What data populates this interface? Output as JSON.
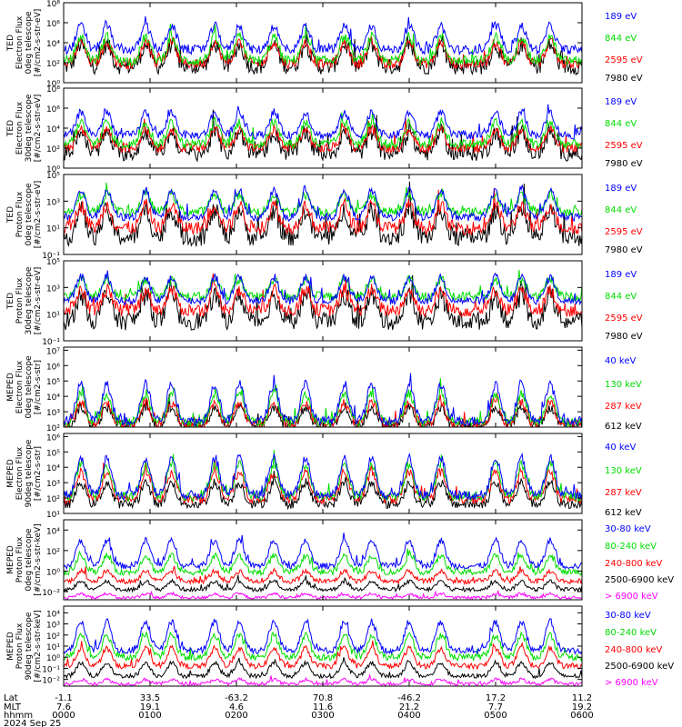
{
  "chart_data": [
    {
      "type": "line",
      "ylabel": [
        "TED",
        "Electron Flux",
        "0deg telescope",
        "[#/cm2-s-str-eV]"
      ],
      "yticks": [
        {
          "exp": 0,
          "label": "10⁰"
        },
        {
          "exp": 2,
          "label": "10²"
        },
        {
          "exp": 4,
          "label": "10⁴"
        },
        {
          "exp": 6,
          "label": "10⁶"
        },
        {
          "exp": 8,
          "label": "10⁸"
        }
      ],
      "ylim": [
        0,
        8
      ],
      "series": [
        {
          "name": "7980 eV",
          "color": "#000000",
          "base": 1.6,
          "peak": 3.8,
          "noise": 0.8
        },
        {
          "name": "2595 eV",
          "color": "#ff0000",
          "base": 1.9,
          "peak": 4.1,
          "noise": 0.5
        },
        {
          "name": "844 eV",
          "color": "#00dd00",
          "base": 2.2,
          "peak": 4.6,
          "noise": 0.5
        },
        {
          "name": "189 eV",
          "color": "#0000ff",
          "base": 3.3,
          "peak": 5.7,
          "noise": 0.45
        }
      ]
    },
    {
      "type": "line",
      "ylabel": [
        "TED",
        "Electron Flux",
        "30deg telescope",
        "[#/cm2-s-str-eV]"
      ],
      "yticks": [
        {
          "exp": 0,
          "label": "10⁰"
        },
        {
          "exp": 2,
          "label": "10²"
        },
        {
          "exp": 4,
          "label": "10⁴"
        },
        {
          "exp": 6,
          "label": "10⁶"
        },
        {
          "exp": 8,
          "label": "10⁸"
        }
      ],
      "ylim": [
        0,
        8
      ],
      "series": [
        {
          "name": "7980 eV",
          "color": "#000000",
          "base": 1.5,
          "peak": 3.6,
          "noise": 0.8
        },
        {
          "name": "2595 eV",
          "color": "#ff0000",
          "base": 2.0,
          "peak": 3.9,
          "noise": 0.5
        },
        {
          "name": "844 eV",
          "color": "#00dd00",
          "base": 2.4,
          "peak": 4.6,
          "noise": 0.5
        },
        {
          "name": "189 eV",
          "color": "#0000ff",
          "base": 3.3,
          "peak": 5.6,
          "noise": 0.4
        }
      ]
    },
    {
      "type": "line",
      "ylabel": [
        "TED",
        "Proton Flux",
        "0deg telescope",
        "[#/cm2-s-str-eV]"
      ],
      "yticks": [
        {
          "exp": -1,
          "label": "10⁻¹"
        },
        {
          "exp": 1,
          "label": "10¹"
        },
        {
          "exp": 3,
          "label": "10³"
        },
        {
          "exp": 5,
          "label": "10⁵"
        }
      ],
      "ylim": [
        -1,
        5
      ],
      "series": [
        {
          "name": "7980 eV",
          "color": "#000000",
          "base": 0.3,
          "peak": 2.3,
          "noise": 0.7
        },
        {
          "name": "2595 eV",
          "color": "#ff0000",
          "base": 1.0,
          "peak": 2.7,
          "noise": 0.5
        },
        {
          "name": "844 eV",
          "color": "#00dd00",
          "base": 2.2,
          "peak": 3.5,
          "noise": 0.35
        },
        {
          "name": "189 eV",
          "color": "#0000ff",
          "base": 1.8,
          "peak": 3.8,
          "noise": 0.3
        }
      ]
    },
    {
      "type": "line",
      "ylabel": [
        "TED",
        "Proton Flux",
        "30deg telescope",
        "[#/cm2-s-str-eV]"
      ],
      "yticks": [
        {
          "exp": -1,
          "label": "10⁻¹"
        },
        {
          "exp": 1,
          "label": "10¹"
        },
        {
          "exp": 3,
          "label": "10³"
        },
        {
          "exp": 5,
          "label": "10⁵"
        }
      ],
      "ylim": [
        -1,
        5
      ],
      "series": [
        {
          "name": "7980 eV",
          "color": "#000000",
          "base": 0.5,
          "peak": 2.4,
          "noise": 0.7
        },
        {
          "name": "2595 eV",
          "color": "#ff0000",
          "base": 1.3,
          "peak": 2.8,
          "noise": 0.5
        },
        {
          "name": "844 eV",
          "color": "#00dd00",
          "base": 2.3,
          "peak": 3.6,
          "noise": 0.35
        },
        {
          "name": "189 eV",
          "color": "#0000ff",
          "base": 2.0,
          "peak": 3.8,
          "noise": 0.3
        }
      ]
    },
    {
      "type": "line",
      "ylabel": [
        "MEPED",
        "Electron Flux",
        "0deg telescope",
        "[#/cm2-s-str]"
      ],
      "yticks": [
        {
          "exp": 2,
          "label": "10²"
        },
        {
          "exp": 3,
          "label": "10³"
        },
        {
          "exp": 4,
          "label": "10⁴"
        },
        {
          "exp": 5,
          "label": "10⁵"
        },
        {
          "exp": 6,
          "label": "10⁶"
        },
        {
          "exp": 7,
          "label": "10⁷"
        }
      ],
      "ylim": [
        2,
        7.2
      ],
      "series": [
        {
          "name": "612 keV",
          "color": "#000000",
          "base": 2.1,
          "peak": 3.3,
          "noise": 0.3
        },
        {
          "name": "287 keV",
          "color": "#ff0000",
          "base": 2.2,
          "peak": 3.6,
          "noise": 0.3
        },
        {
          "name": "130 keV",
          "color": "#00dd00",
          "base": 2.3,
          "peak": 4.2,
          "noise": 0.3
        },
        {
          "name": "40 keV",
          "color": "#0000ff",
          "base": 2.4,
          "peak": 4.8,
          "noise": 0.3
        }
      ]
    },
    {
      "type": "line",
      "ylabel": [
        "MEPED",
        "Electron Flux",
        "90deg telescope",
        "[#/cm2-s-str]"
      ],
      "yticks": [
        {
          "exp": 1,
          "label": "10¹"
        },
        {
          "exp": 2,
          "label": "10²"
        },
        {
          "exp": 3,
          "label": "10³"
        },
        {
          "exp": 4,
          "label": "10⁴"
        },
        {
          "exp": 5,
          "label": "10⁵"
        },
        {
          "exp": 6,
          "label": "10⁶"
        }
      ],
      "ylim": [
        1,
        6.2
      ],
      "series": [
        {
          "name": "612 keV",
          "color": "#000000",
          "base": 1.6,
          "peak": 3.0,
          "noise": 0.3
        },
        {
          "name": "287 keV",
          "color": "#ff0000",
          "base": 1.9,
          "peak": 3.7,
          "noise": 0.3
        },
        {
          "name": "130 keV",
          "color": "#00dd00",
          "base": 2.1,
          "peak": 4.2,
          "noise": 0.3
        },
        {
          "name": "40 keV",
          "color": "#0000ff",
          "base": 2.2,
          "peak": 4.6,
          "noise": 0.3
        }
      ]
    },
    {
      "type": "line",
      "ylabel": [
        "MEPED",
        "Proton Flux",
        "0deg telescope",
        "[#/cm2-s-str-keV]"
      ],
      "yticks": [
        {
          "exp": -2,
          "label": "10⁻²"
        },
        {
          "exp": 0,
          "label": "10⁰"
        },
        {
          "exp": 2,
          "label": "10²"
        },
        {
          "exp": 4,
          "label": "10⁴"
        }
      ],
      "ylim": [
        -2.8,
        5
      ],
      "series": [
        {
          "name": "> 6900 keV",
          "color": "#ff00ff",
          "base": -2.6,
          "peak": -2.2,
          "noise": 0.15
        },
        {
          "name": "2500-6900 keV",
          "color": "#000000",
          "base": -1.8,
          "peak": -1.0,
          "noise": 0.2
        },
        {
          "name": "240-800 keV",
          "color": "#ff0000",
          "base": -1.0,
          "peak": 0.0,
          "noise": 0.25
        },
        {
          "name": "80-240 keV",
          "color": "#00dd00",
          "base": -0.1,
          "peak": 1.5,
          "noise": 0.3
        },
        {
          "name": "30-80 keV",
          "color": "#0000ff",
          "base": 0.5,
          "peak": 3.0,
          "noise": 0.3
        }
      ]
    },
    {
      "type": "line",
      "ylabel": [
        "MEPED",
        "Proton Flux",
        "90deg telescope",
        "[#/cm2-s-str-keV]"
      ],
      "yticks": [
        {
          "exp": -2,
          "label": "10⁻²"
        },
        {
          "exp": -1,
          "label": "10⁻¹"
        },
        {
          "exp": 0,
          "label": "10⁰"
        },
        {
          "exp": 1,
          "label": "10¹"
        },
        {
          "exp": 2,
          "label": "10²"
        },
        {
          "exp": 3,
          "label": "10³"
        },
        {
          "exp": 4,
          "label": "10⁴"
        }
      ],
      "ylim": [
        -2.6,
        4.6
      ],
      "series": [
        {
          "name": "> 6900 keV",
          "color": "#ff00ff",
          "base": -2.4,
          "peak": -2.0,
          "noise": 0.15
        },
        {
          "name": "2500-6900 keV",
          "color": "#000000",
          "base": -1.7,
          "peak": -0.5,
          "noise": 0.2
        },
        {
          "name": "240-800 keV",
          "color": "#ff0000",
          "base": -0.8,
          "peak": 0.8,
          "noise": 0.25
        },
        {
          "name": "80-240 keV",
          "color": "#00dd00",
          "base": 0.0,
          "peak": 2.0,
          "noise": 0.3
        },
        {
          "name": "30-80 keV",
          "color": "#0000ff",
          "base": 0.6,
          "peak": 3.2,
          "noise": 0.3
        }
      ]
    }
  ],
  "x_axis": {
    "row_labels": [
      "Lat",
      "MLT",
      "hhmm",
      "2024 Sep 25"
    ],
    "ticks": [
      {
        "minute": 0,
        "lat": "-1.1",
        "mlt": "7.6",
        "hhmm": "0000"
      },
      {
        "minute": 60,
        "lat": "33.5",
        "mlt": "19.1",
        "hhmm": "0100"
      },
      {
        "minute": 120,
        "lat": "-63.2",
        "mlt": "4.6",
        "hhmm": "0200"
      },
      {
        "minute": 180,
        "lat": "70.8",
        "mlt": "11.6",
        "hhmm": "0300"
      },
      {
        "minute": 240,
        "lat": "-46.2",
        "mlt": "21.2",
        "hhmm": "0400"
      },
      {
        "minute": 300,
        "lat": "17.2",
        "mlt": "7.7",
        "hhmm": "0500"
      },
      {
        "minute": 360,
        "lat": "11.2",
        "mlt": "19.2",
        "hhmm": "0600"
      }
    ],
    "range_minutes": [
      0,
      360
    ]
  }
}
